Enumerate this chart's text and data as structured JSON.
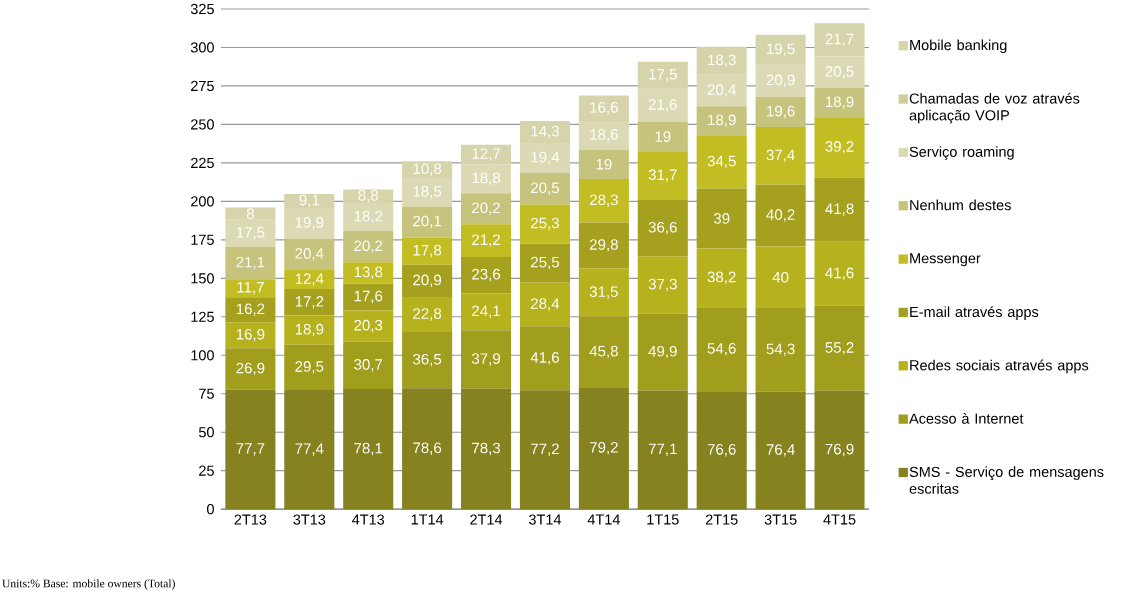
{
  "chart_data": {
    "type": "bar",
    "stacked": true,
    "categories": [
      "2T13",
      "3T13",
      "4T13",
      "1T14",
      "2T14",
      "3T14",
      "4T14",
      "1T15",
      "2T15",
      "3T15",
      "4T15"
    ],
    "ylim": [
      0,
      325
    ],
    "yticks": [
      0,
      25,
      50,
      75,
      100,
      125,
      150,
      175,
      200,
      225,
      250,
      275,
      300,
      325
    ],
    "grid": "y",
    "legend": "right",
    "annotations": [
      "Units:% Base: mobile owners (Total)"
    ],
    "series": [
      {
        "name": "SMS - Serviço de mensagens escritas",
        "color": "#86821f",
        "values": [
          77.7,
          77.4,
          78.1,
          78.6,
          78.3,
          77.2,
          79.2,
          77.1,
          76.6,
          76.4,
          76.9
        ],
        "value_labels": [
          "77,7",
          "77,4",
          "78,1",
          "78,6",
          "78,3",
          "77,2",
          "79,2",
          "77,1",
          "76,6",
          "76,4",
          "76,9"
        ]
      },
      {
        "name": "Acesso à Internet",
        "color": "#a19d1d",
        "values": [
          26.9,
          29.5,
          30.7,
          36.5,
          37.9,
          41.6,
          45.8,
          49.9,
          54.6,
          54.3,
          55.2
        ],
        "value_labels": [
          "26,9",
          "29,5",
          "30,7",
          "36,5",
          "37,9",
          "41,6",
          "45,8",
          "49,9",
          "54,6",
          "54,3",
          "55,2"
        ]
      },
      {
        "name": "Redes sociais através apps",
        "color": "#b5b21e",
        "values": [
          16.9,
          18.9,
          20.3,
          22.8,
          24.1,
          28.4,
          31.5,
          37.3,
          38.2,
          40,
          41.6
        ],
        "value_labels": [
          "16,9",
          "18,9",
          "20,3",
          "22,8",
          "24,1",
          "28,4",
          "31,5",
          "37,3",
          "38,2",
          "40",
          "41,6"
        ]
      },
      {
        "name": "E-mail através apps",
        "color": "#a5a11f",
        "values": [
          16.2,
          17.2,
          17.6,
          20.9,
          23.6,
          25.5,
          29.8,
          36.6,
          39,
          40.2,
          41.8
        ],
        "value_labels": [
          "16,2",
          "17,2",
          "17,6",
          "20,9",
          "23,6",
          "25,5",
          "29,8",
          "36,6",
          "39",
          "40,2",
          "41,8"
        ]
      },
      {
        "name": "Messenger",
        "color": "#c1bd22",
        "values": [
          11.7,
          12.4,
          13.8,
          17.8,
          21.2,
          25.3,
          28.3,
          31.7,
          34.5,
          37.4,
          39.2
        ],
        "value_labels": [
          "11,7",
          "12,4",
          "13,8",
          "17,8",
          "21,2",
          "25,3",
          "28,3",
          "31,7",
          "34,5",
          "37,4",
          "39,2"
        ]
      },
      {
        "name": "Nenhum destes",
        "color": "#c6c47c",
        "values": [
          21.1,
          20.4,
          20.2,
          20.1,
          20.2,
          20.5,
          19,
          19,
          18.9,
          19.6,
          18.9
        ],
        "value_labels": [
          "21,1",
          "20,4",
          "20,2",
          "20,1",
          "20,2",
          "20,5",
          "19",
          "19",
          "18,9",
          "19,6",
          "18,9"
        ]
      },
      {
        "name": "Serviço roaming",
        "color": "#dcdab4",
        "values": [
          17.5,
          19.9,
          18.2,
          18.5,
          18.8,
          19.4,
          18.6,
          21.6,
          20.4,
          20.9,
          20.5
        ],
        "value_labels": [
          "17,5",
          "19,9",
          "18,2",
          "18,5",
          "18,8",
          "19,4",
          "18,6",
          "21,6",
          "20,4",
          "20,9",
          "20,5"
        ]
      },
      {
        "name": "Chamadas de voz através aplicação VOIP",
        "color": "#cfcc98",
        "values": [
          null,
          null,
          null,
          null,
          null,
          null,
          null,
          null,
          null,
          null,
          null
        ]
      },
      {
        "name": "Mobile banking",
        "color": "#d6d4aa",
        "values": [
          8,
          9.1,
          8.8,
          10.8,
          12.7,
          14.3,
          16.6,
          17.5,
          18.3,
          19.5,
          21.7
        ],
        "value_labels": [
          "8",
          "9,1",
          "8,8",
          "10,8",
          "12,7",
          "14,3",
          "16,6",
          "17,5",
          "18,3",
          "19,5",
          "21,7"
        ]
      }
    ]
  }
}
